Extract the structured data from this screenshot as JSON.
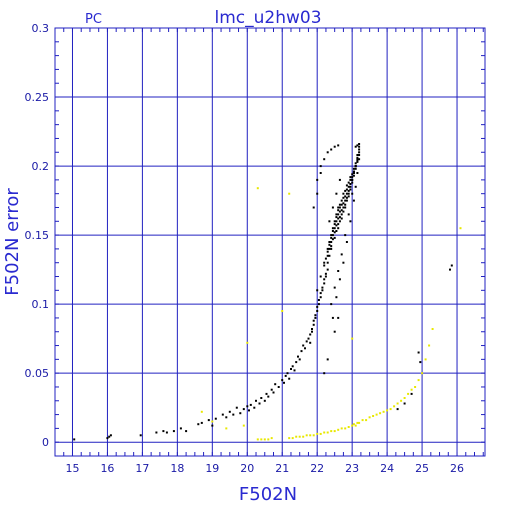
{
  "chart_data": {
    "type": "scatter",
    "title": "lmc_u2hw03",
    "corner_label": "PC",
    "xlabel": "F502N",
    "ylabel": "F502N error",
    "xlim": [
      14.5,
      26.8
    ],
    "ylim": [
      -0.01,
      0.3
    ],
    "x_ticks": [
      15,
      16,
      17,
      18,
      19,
      20,
      21,
      22,
      23,
      24,
      25,
      26
    ],
    "y_ticks": [
      {
        "value": 0,
        "label": "0"
      },
      {
        "value": 0.05,
        "label": "0.05"
      },
      {
        "value": 0.1,
        "label": "0.1"
      },
      {
        "value": 0.15,
        "label": "0.15"
      },
      {
        "value": 0.2,
        "label": "0.2"
      },
      {
        "value": 0.25,
        "label": "0.25"
      },
      {
        "value": 0.3,
        "label": "0.3"
      }
    ],
    "grid": true,
    "colors": {
      "grid": "#2020c0",
      "text": "#2a2ad0",
      "series_black": "#000000",
      "series_yellow": "#e8e800"
    },
    "series": [
      {
        "color": "black",
        "x": [
          15.05,
          16.0,
          16.05,
          16.1,
          16.95,
          17.4,
          17.6,
          17.7,
          17.9,
          18.1,
          18.25,
          18.6,
          18.7,
          18.9,
          19.0,
          19.1,
          19.3,
          19.4,
          19.5,
          19.6,
          19.7,
          19.8,
          19.9,
          20.0,
          20.05,
          20.1,
          20.2,
          20.25,
          20.35,
          20.4,
          20.5,
          20.55,
          20.6,
          20.7,
          20.75,
          20.8,
          20.9,
          21.0,
          21.05,
          21.1,
          21.15,
          21.2,
          21.25,
          21.3,
          21.35,
          21.4,
          21.45,
          21.5,
          21.55,
          21.6,
          21.65,
          21.7,
          21.75,
          21.8,
          21.85,
          21.9,
          21.95,
          22.0,
          22.05,
          22.1,
          22.15,
          22.2,
          22.25,
          22.3,
          21.8,
          21.85,
          21.9,
          21.95,
          22.0,
          22.05,
          22.1,
          22.15,
          22.2,
          22.25,
          22.3,
          22.35,
          22.4,
          22.0,
          22.1,
          22.2,
          22.3,
          22.35,
          22.4,
          22.45,
          22.5,
          22.55,
          22.6,
          22.2,
          22.25,
          22.3,
          22.35,
          22.4,
          22.45,
          22.5,
          22.55,
          22.6,
          22.65,
          22.3,
          22.35,
          22.4,
          22.45,
          22.5,
          22.55,
          22.6,
          22.65,
          22.7,
          22.75,
          22.4,
          22.45,
          22.5,
          22.55,
          22.6,
          22.65,
          22.7,
          22.75,
          22.8,
          22.85,
          22.5,
          22.55,
          22.6,
          22.65,
          22.7,
          22.75,
          22.8,
          22.85,
          22.9,
          22.95,
          22.6,
          22.65,
          22.7,
          22.75,
          22.8,
          22.85,
          22.9,
          22.95,
          23.0,
          23.05,
          22.7,
          22.75,
          22.8,
          22.85,
          22.9,
          22.95,
          23.0,
          23.05,
          23.1,
          23.15,
          22.8,
          22.85,
          22.9,
          22.95,
          23.0,
          23.05,
          23.1,
          23.15,
          23.2,
          22.9,
          22.95,
          23.0,
          23.05,
          23.1,
          23.15,
          23.2,
          23.0,
          23.05,
          23.1,
          23.15,
          23.2,
          23.05,
          23.1,
          23.15,
          23.2,
          22.4,
          22.5,
          22.6,
          22.7,
          22.8,
          22.9,
          23.0,
          22.45,
          22.55,
          22.65,
          22.75,
          22.85,
          22.95,
          23.05,
          23.1,
          23.15,
          23.2,
          22.3,
          22.4,
          22.5,
          22.6,
          22.0,
          22.1,
          22.2,
          21.9,
          22.0,
          22.1,
          22.35,
          22.45,
          22.55,
          22.65,
          22.2,
          22.3,
          22.5,
          22.6,
          23.15,
          23.2,
          23.1,
          24.3,
          24.5,
          24.7,
          24.9,
          24.95,
          25.8,
          25.85
        ],
        "y": [
          0.002,
          0.003,
          0.004,
          0.005,
          0.005,
          0.007,
          0.008,
          0.007,
          0.008,
          0.01,
          0.008,
          0.013,
          0.014,
          0.016,
          0.012,
          0.017,
          0.02,
          0.018,
          0.022,
          0.02,
          0.025,
          0.021,
          0.024,
          0.026,
          0.023,
          0.027,
          0.025,
          0.03,
          0.028,
          0.032,
          0.03,
          0.035,
          0.033,
          0.038,
          0.036,
          0.042,
          0.04,
          0.045,
          0.043,
          0.048,
          0.05,
          0.046,
          0.053,
          0.055,
          0.052,
          0.058,
          0.062,
          0.06,
          0.066,
          0.07,
          0.068,
          0.073,
          0.075,
          0.078,
          0.082,
          0.085,
          0.09,
          0.095,
          0.1,
          0.105,
          0.11,
          0.115,
          0.12,
          0.125,
          0.072,
          0.08,
          0.088,
          0.092,
          0.098,
          0.103,
          0.108,
          0.112,
          0.118,
          0.122,
          0.13,
          0.135,
          0.14,
          0.11,
          0.12,
          0.13,
          0.14,
          0.145,
          0.15,
          0.155,
          0.16,
          0.165,
          0.17,
          0.128,
          0.133,
          0.138,
          0.143,
          0.148,
          0.153,
          0.158,
          0.163,
          0.168,
          0.172,
          0.135,
          0.14,
          0.145,
          0.15,
          0.155,
          0.16,
          0.165,
          0.17,
          0.175,
          0.18,
          0.142,
          0.147,
          0.152,
          0.157,
          0.162,
          0.167,
          0.172,
          0.177,
          0.182,
          0.186,
          0.148,
          0.153,
          0.158,
          0.163,
          0.168,
          0.173,
          0.178,
          0.183,
          0.188,
          0.192,
          0.155,
          0.16,
          0.165,
          0.17,
          0.175,
          0.18,
          0.185,
          0.19,
          0.194,
          0.198,
          0.162,
          0.167,
          0.172,
          0.177,
          0.182,
          0.187,
          0.192,
          0.196,
          0.2,
          0.204,
          0.17,
          0.175,
          0.18,
          0.185,
          0.19,
          0.195,
          0.2,
          0.205,
          0.21,
          0.178,
          0.183,
          0.188,
          0.193,
          0.198,
          0.203,
          0.208,
          0.19,
          0.195,
          0.2,
          0.206,
          0.212,
          0.196,
          0.202,
          0.208,
          0.214,
          0.1,
          0.112,
          0.124,
          0.136,
          0.15,
          0.165,
          0.18,
          0.09,
          0.105,
          0.118,
          0.13,
          0.145,
          0.16,
          0.175,
          0.185,
          0.195,
          0.205,
          0.21,
          0.212,
          0.214,
          0.215,
          0.19,
          0.2,
          0.205,
          0.17,
          0.18,
          0.195,
          0.16,
          0.17,
          0.18,
          0.19,
          0.05,
          0.06,
          0.08,
          0.09,
          0.215,
          0.216,
          0.214,
          0.024,
          0.028,
          0.035,
          0.065,
          0.058,
          0.125,
          0.128
        ]
      },
      {
        "color": "yellow",
        "x": [
          18.7,
          19.0,
          19.4,
          19.9,
          20.0,
          20.3,
          20.3,
          20.4,
          20.5,
          20.6,
          20.7,
          21.2,
          21.3,
          21.4,
          21.5,
          21.6,
          21.7,
          21.8,
          21.9,
          22.0,
          22.1,
          22.2,
          22.3,
          22.4,
          22.5,
          22.6,
          22.7,
          22.8,
          22.9,
          23.0,
          23.05,
          23.1,
          23.15,
          23.2,
          23.3,
          23.4,
          23.5,
          23.6,
          23.7,
          23.8,
          23.9,
          24.0,
          24.1,
          24.2,
          24.3,
          24.4,
          24.5,
          24.6,
          24.7,
          24.8,
          24.9,
          25.0,
          25.1,
          25.2,
          25.3,
          26.1,
          21.2,
          23.0,
          21.0
        ],
        "y": [
          0.022,
          0.015,
          0.01,
          0.012,
          0.072,
          0.184,
          0.002,
          0.002,
          0.002,
          0.002,
          0.003,
          0.003,
          0.003,
          0.004,
          0.004,
          0.004,
          0.005,
          0.005,
          0.005,
          0.006,
          0.006,
          0.007,
          0.007,
          0.008,
          0.008,
          0.009,
          0.01,
          0.01,
          0.011,
          0.012,
          0.013,
          0.012,
          0.014,
          0.014,
          0.016,
          0.016,
          0.018,
          0.019,
          0.02,
          0.021,
          0.022,
          0.023,
          0.024,
          0.026,
          0.028,
          0.03,
          0.032,
          0.035,
          0.038,
          0.04,
          0.045,
          0.05,
          0.06,
          0.07,
          0.082,
          0.155,
          0.18,
          0.075,
          0.095
        ]
      }
    ]
  }
}
